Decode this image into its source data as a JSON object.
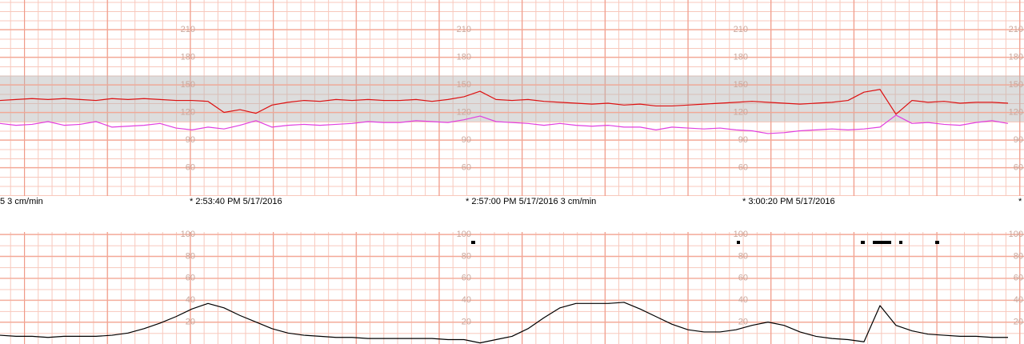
{
  "chart_data": [
    {
      "type": "line",
      "ylim": [
        30,
        240
      ],
      "yticks": [
        60,
        90,
        120,
        150,
        180,
        210
      ],
      "normal_range": [
        110,
        160
      ],
      "grid": true,
      "annotations": [
        "5  3 cm/min",
        "* 2:53:40 PM 5/17/2016",
        "* 2:57:00 PM 5/17/2016  3 cm/min",
        "* 3:00:20 PM 5/17/2016",
        "*"
      ],
      "series": [
        {
          "color": "#dd1111",
          "values": [
            133,
            134,
            135,
            134,
            135,
            134,
            133,
            135,
            134,
            135,
            134,
            133,
            133,
            132,
            120,
            123,
            119,
            128,
            131,
            133,
            132,
            134,
            133,
            134,
            133,
            133,
            134,
            132,
            134,
            137,
            143,
            134,
            133,
            134,
            132,
            131,
            130,
            129,
            130,
            128,
            129,
            127,
            127,
            128,
            129,
            130,
            131,
            132,
            131,
            130,
            129,
            130,
            131,
            133,
            142,
            145,
            118,
            133,
            131,
            132,
            130,
            131,
            131,
            130
          ]
        },
        {
          "color": "#e040e0",
          "values": [
            108,
            106,
            107,
            110,
            106,
            107,
            110,
            104,
            105,
            106,
            108,
            103,
            101,
            104,
            102,
            106,
            111,
            104,
            106,
            107,
            106,
            107,
            108,
            110,
            109,
            109,
            111,
            110,
            109,
            112,
            116,
            110,
            109,
            108,
            106,
            108,
            106,
            105,
            106,
            104,
            104,
            101,
            104,
            103,
            102,
            103,
            101,
            100,
            97,
            98,
            100,
            101,
            102,
            101,
            102,
            104,
            117,
            108,
            109,
            107,
            106,
            109,
            111,
            108
          ]
        }
      ]
    },
    {
      "type": "line",
      "ylim": [
        0,
        100
      ],
      "yticks": [
        20,
        40,
        60,
        80,
        100
      ],
      "grid": true,
      "series": [
        {
          "color": "#000000",
          "values": [
            8,
            7,
            7,
            6,
            7,
            7,
            7,
            8,
            10,
            14,
            19,
            25,
            32,
            37,
            33,
            26,
            20,
            14,
            10,
            8,
            7,
            6,
            6,
            5,
            5,
            5,
            5,
            5,
            4,
            4,
            1,
            4,
            7,
            14,
            24,
            33,
            37,
            37,
            37,
            38,
            32,
            25,
            18,
            13,
            11,
            11,
            13,
            17,
            20,
            17,
            11,
            7,
            5,
            4,
            2,
            35,
            17,
            12,
            9,
            8,
            7,
            7,
            6,
            6
          ]
        }
      ]
    }
  ]
}
